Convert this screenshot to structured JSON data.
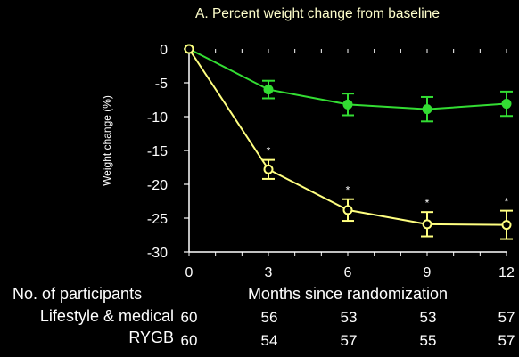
{
  "chart_data": {
    "type": "line",
    "title": "A. Percent weight change from baseline",
    "ylabel": "Weight change (%)",
    "xlabel": "Months since randomization",
    "x": [
      0,
      3,
      6,
      9,
      12
    ],
    "xticks": [
      "0",
      "3",
      "6",
      "9",
      "12"
    ],
    "yticks": [
      "0",
      "-5",
      "-10",
      "-15",
      "-20",
      "-25",
      "-30"
    ],
    "ylim": [
      -30,
      0
    ],
    "xlim": [
      0,
      12
    ],
    "series": [
      {
        "color": "#33dd33",
        "marker": "filled-circle",
        "values": [
          0,
          -6.0,
          -8.2,
          -8.9,
          -8.1
        ],
        "err": [
          0,
          1.3,
          1.6,
          1.8,
          1.8
        ]
      },
      {
        "color": "#ffff80",
        "marker": "open-circle",
        "values": [
          0,
          -17.8,
          -23.8,
          -25.9,
          -26.0
        ],
        "err": [
          0,
          1.4,
          1.6,
          1.8,
          2.1
        ]
      }
    ],
    "annotations": [
      {
        "text": "*",
        "x": 3
      },
      {
        "text": "*",
        "x": 6
      },
      {
        "text": "*",
        "x": 9
      },
      {
        "text": "*",
        "x": 12
      }
    ]
  },
  "table": {
    "header": "No. of participants",
    "rows": [
      {
        "label": "Lifestyle & medical",
        "values": [
          "60",
          "56",
          "53",
          "53",
          "57"
        ]
      },
      {
        "label": "RYGB",
        "values": [
          "60",
          "54",
          "57",
          "55",
          "57"
        ]
      }
    ]
  }
}
